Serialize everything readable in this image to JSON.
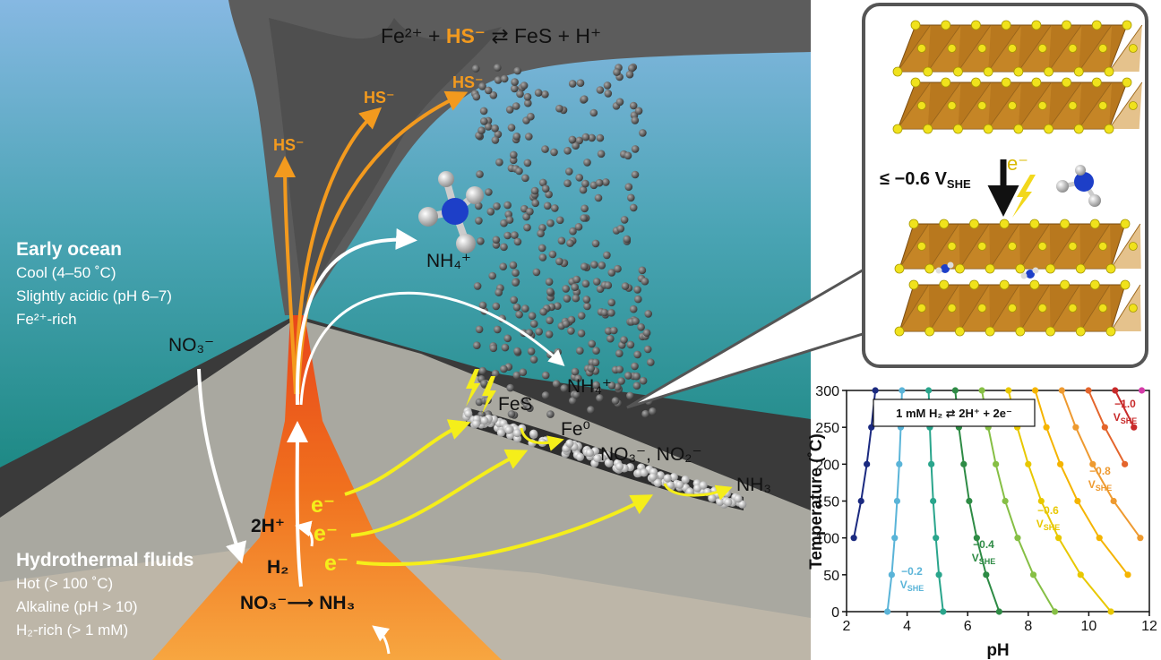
{
  "equation": {
    "left": "Fe²⁺ + ",
    "highlight": "HS⁻",
    "right": " ⇄ FeS + H⁺"
  },
  "plume_labels": [
    "HS⁻",
    "HS⁻",
    "HS⁻"
  ],
  "species": {
    "ammonium_plume": "NH₄⁺",
    "ammonium_seafloor": "NH₄⁺",
    "nitrate_ocean": "NO₃⁻",
    "iron_sulfide": "FeS",
    "iron_metal": "Fe⁰",
    "oxyanions": "NO₃⁻, NO₂⁻",
    "ammonia_seafloor": "NH₃",
    "protons": "2H⁺",
    "hydrogen": "H₂",
    "vent_reaction": "NO₃⁻⟶ NH₃"
  },
  "electrons": [
    "e⁻",
    "e⁻",
    "e⁻"
  ],
  "early_ocean": {
    "title": "Early ocean",
    "lines": [
      "Cool (4–50 ˚C)",
      "Slightly acidic (pH 6–7)",
      "Fe²⁺-rich"
    ]
  },
  "hydrothermal_fluids": {
    "title": "Hydrothermal fluids",
    "lines": [
      "Hot (> 100 ˚C)",
      "Alkaline (pH > 10)",
      "H₂-rich (> 1 mM)"
    ]
  },
  "inset": {
    "potential": "≤ −0.6 V",
    "potential_subscript": "SHE",
    "electron": "e⁻"
  },
  "chart_data": {
    "type": "line",
    "annotation": "1 mM H₂ ⇄ 2H⁺ + 2e⁻",
    "xlabel": "pH",
    "ylabel": "Temperature (˚C)",
    "unit": "V",
    "unit_subscript": "SHE",
    "xlim": [
      2,
      12
    ],
    "ylim": [
      0,
      300
    ],
    "xticks": [
      2,
      4,
      6,
      8,
      10,
      12
    ],
    "yticks": [
      0,
      50,
      100,
      150,
      200,
      250,
      300
    ],
    "temperatures": [
      0,
      50,
      100,
      150,
      200,
      250,
      300
    ],
    "series": [
      {
        "color": "#1b2a80",
        "values": [
          null,
          null,
          2.24,
          2.48,
          2.67,
          2.82,
          2.95
        ]
      },
      {
        "name": "−0.2",
        "color": "#5ab4d8",
        "values": [
          3.35,
          3.49,
          3.59,
          3.67,
          3.74,
          3.79,
          3.83
        ]
      },
      {
        "color": "#2aa58c",
        "values": [
          5.19,
          5.05,
          4.95,
          4.86,
          4.8,
          4.75,
          4.71
        ]
      },
      {
        "name": "−0.4",
        "color": "#2e8b45",
        "values": [
          7.04,
          6.61,
          6.3,
          6.05,
          5.87,
          5.71,
          5.59
        ]
      },
      {
        "color": "#86bf45",
        "values": [
          8.88,
          8.17,
          7.65,
          7.24,
          6.93,
          6.68,
          6.47
        ]
      },
      {
        "name": "−0.6",
        "color": "#e8c800",
        "values": [
          10.73,
          9.73,
          9.0,
          8.43,
          8.0,
          7.64,
          7.35
        ]
      },
      {
        "color": "#f5b400",
        "values": [
          null,
          11.29,
          10.35,
          9.63,
          9.06,
          8.6,
          8.23
        ]
      },
      {
        "name": "−0.8",
        "color": "#ee9a30",
        "values": [
          null,
          null,
          11.7,
          10.82,
          10.13,
          9.57,
          9.11
        ]
      },
      {
        "color": "#e4652c",
        "values": [
          null,
          null,
          null,
          null,
          11.19,
          10.53,
          9.99
        ]
      },
      {
        "name": "−1.0",
        "color": "#c82a2a",
        "values": [
          null,
          null,
          null,
          null,
          null,
          11.49,
          10.87
        ]
      },
      {
        "color": "#d43aa8",
        "values": [
          null,
          null,
          null,
          null,
          null,
          null,
          11.75
        ]
      }
    ]
  }
}
